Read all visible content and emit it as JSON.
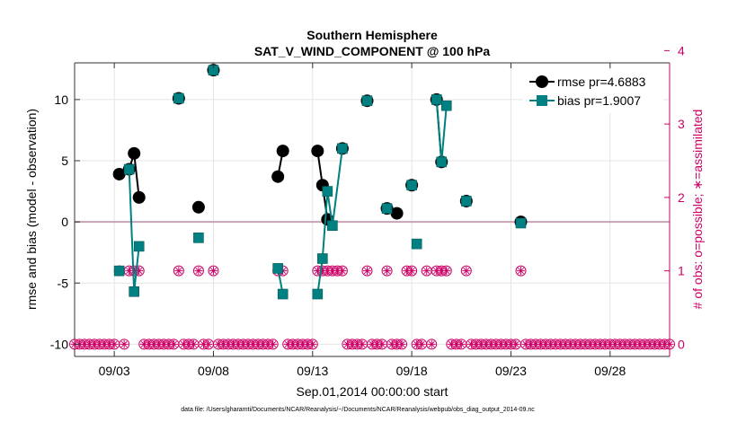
{
  "chart_data": {
    "type": "line",
    "title": "Southern Hemisphere",
    "subtitle": "SAT_V_WIND_COMPONENT @ 100 hPa",
    "xlabel": "Sep.01,2014 00:00:00 start",
    "ylabel": "rmse and bias (model - observation)",
    "y2label": "# of obs: o=possible; ∗=assimilated",
    "footnote": "data file: /Users/gharamti/Documents/NCAR/Reanalysis/~/Documents/NCAR/Reanalysis/webpub/obs_diag_output_2014-09.nc",
    "x_unit": "days since Sep.01,2014 00:00:00",
    "xlim": [
      0,
      30
    ],
    "ylim": [
      -11,
      13
    ],
    "y2lim": [
      -0.1667,
      3.8333
    ],
    "x_ticks": [
      2,
      7,
      12,
      17,
      22,
      27
    ],
    "x_tick_labels": [
      "09/03",
      "09/08",
      "09/13",
      "09/18",
      "09/23",
      "09/28"
    ],
    "y_ticks": [
      -10,
      -5,
      0,
      5,
      10
    ],
    "y_tick_labels": [
      "-10",
      "-5",
      "0",
      "5",
      "10"
    ],
    "y2_ticks": [
      0,
      1,
      2,
      3,
      4
    ],
    "y2_tick_labels": [
      "0",
      "1",
      "2",
      "3",
      "4"
    ],
    "grid": true,
    "zero_line": 0,
    "legend_position": "top-right",
    "colors": {
      "rmse": "#000000",
      "bias": "#008080",
      "obs": "#cc0066",
      "zero": "#c8a2b4"
    },
    "series": [
      {
        "name": "rmse pr=4.6883",
        "marker": "circle",
        "axis": "left",
        "segments": [
          [
            [
              2.25,
              3.9
            ],
            [
              2.75,
              4.3
            ],
            [
              3.0,
              5.6
            ],
            [
              3.25,
              2.0
            ]
          ],
          [
            [
              5.25,
              10.1
            ]
          ],
          [
            [
              6.25,
              1.2
            ]
          ],
          [
            [
              7.0,
              12.4
            ]
          ],
          [
            [
              10.25,
              3.7
            ],
            [
              10.5,
              5.8
            ]
          ],
          [
            [
              12.25,
              5.8
            ],
            [
              12.5,
              3.0
            ],
            [
              12.75,
              0.2
            ]
          ],
          [
            [
              13.5,
              6.0
            ]
          ],
          [
            [
              14.75,
              9.9
            ]
          ],
          [
            [
              15.75,
              1.1
            ]
          ],
          [
            [
              16.25,
              0.7
            ]
          ],
          [
            [
              17.0,
              3.0
            ]
          ],
          [
            [
              18.25,
              10.0
            ],
            [
              18.5,
              4.9
            ]
          ],
          [
            [
              19.75,
              1.7
            ]
          ],
          [
            [
              22.5,
              0.0
            ]
          ]
        ]
      },
      {
        "name": "bias pr=1.9007",
        "marker": "square",
        "axis": "left",
        "segments": [
          [
            [
              2.25,
              -4.0
            ]
          ],
          [
            [
              2.75,
              4.3
            ],
            [
              3.0,
              -5.7
            ],
            [
              3.25,
              -2.0
            ]
          ],
          [
            [
              5.25,
              10.1
            ]
          ],
          [
            [
              6.25,
              -1.3
            ]
          ],
          [
            [
              7.0,
              12.4
            ]
          ],
          [
            [
              10.25,
              -3.8
            ],
            [
              10.5,
              -5.9
            ]
          ],
          [
            [
              12.25,
              -5.9
            ],
            [
              12.5,
              -3.0
            ],
            [
              12.75,
              2.5
            ],
            [
              13.0,
              -0.3
            ],
            [
              13.5,
              6.0
            ]
          ],
          [
            [
              14.75,
              9.9
            ]
          ],
          [
            [
              15.75,
              1.1
            ]
          ],
          [
            [
              17.0,
              3.0
            ]
          ],
          [
            [
              17.25,
              -1.8
            ]
          ],
          [
            [
              18.25,
              10.0
            ],
            [
              18.5,
              4.9
            ],
            [
              18.75,
              9.5
            ]
          ],
          [
            [
              19.75,
              1.7
            ]
          ],
          [
            [
              22.5,
              -0.1
            ]
          ]
        ]
      },
      {
        "name": "obs_possible",
        "marker": "open-circle",
        "axis": "right",
        "x": [
          2.25,
          2.75,
          3.0,
          3.25,
          5.25,
          6.25,
          7.0,
          10.25,
          10.5,
          12.25,
          12.5,
          12.75,
          13.0,
          13.25,
          13.5,
          14.75,
          15.75,
          16.75,
          17.0,
          17.75,
          18.25,
          18.5,
          18.75,
          19.75,
          22.5
        ],
        "y": [
          1,
          1,
          1,
          1,
          1,
          1,
          1,
          1,
          1,
          1,
          1,
          1,
          1,
          1,
          1,
          1,
          1,
          1,
          1,
          1,
          1,
          1,
          1,
          1,
          1
        ]
      },
      {
        "name": "obs_assimilated",
        "marker": "asterisk",
        "axis": "right",
        "x": [
          2.25,
          2.75,
          3.0,
          3.25,
          5.25,
          6.25,
          7.0,
          10.25,
          10.5,
          12.25,
          12.5,
          12.75,
          13.0,
          13.25,
          13.5,
          14.75,
          15.75,
          16.75,
          17.0,
          17.75,
          18.25,
          18.5,
          18.75,
          19.75,
          22.5
        ],
        "y": [
          1,
          1,
          1,
          1,
          1,
          1,
          1,
          1,
          1,
          1,
          1,
          1,
          1,
          1,
          1,
          1,
          1,
          1,
          1,
          1,
          1,
          1,
          1,
          1,
          1
        ]
      },
      {
        "name": "obs_zero",
        "marker": "open-circle-asterisk",
        "axis": "right",
        "x_start": 0.0,
        "x_end": 30.0,
        "x_step": 0.25,
        "exclude_x": [
          2.25,
          2.75,
          3.0,
          3.25,
          5.25,
          6.25,
          7.0,
          10.25,
          10.5,
          12.25,
          12.5,
          12.75,
          13.0,
          13.25,
          13.5,
          14.75,
          15.75,
          16.75,
          17.0,
          17.75,
          18.25,
          18.5,
          18.75,
          19.75,
          22.5
        ],
        "y": 0
      }
    ]
  }
}
